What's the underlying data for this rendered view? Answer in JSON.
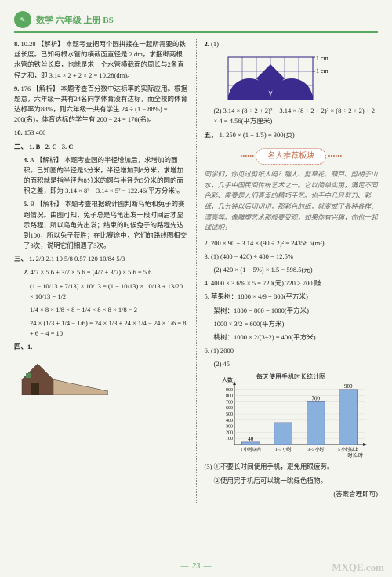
{
  "header": {
    "title": "数学 六年级 上册 BS"
  },
  "left": {
    "q8": {
      "num": "8.",
      "ans": "10.28",
      "label": "【解析】",
      "text": "本题考查把两个圆拼接在一起所需要的铁丝长度。已知每根水管的横截面直径是 2 dm，求捆绑两根水管的铁丝长度，也就是求一个水管横截面的周长与2条直径之和，即 3.14 × 2 + 2 × 2 = 10.28(dm)。"
    },
    "q9": {
      "num": "9.",
      "ans": "176",
      "label": "【解析】",
      "text": "本题考查百分数中达标率的实际应用。根据题意，六年级一共有24名同学体育没有达标，而全校的体育达标率为88%，则六年级一共有学生 24 ÷ (1 − 88%) = 200(名)，体育达标的学生有 200 − 24 = 176(名)。"
    },
    "q10": {
      "num": "10.",
      "ans": "153  400"
    },
    "sec2": {
      "label": "二、",
      "q1": "1. B",
      "q2": "2. C",
      "q3": "3. C",
      "q4": {
        "num": "4.",
        "ans": "A",
        "label": "【解析】",
        "text": "本题考查圆的半径增加后，求增加的面积。已知圆的半径是5分米，半径增加到8分米，求增加的面积就是指半径为8分米的圆与半径为5分米的圆的面积之差，即为 3.14 × 8² − 3.14 × 5² = 122.46(平方分米)。"
      },
      "q5": {
        "num": "5.",
        "ans": "B",
        "label": "【解析】",
        "text": "本题考查根据统计图判断乌龟和兔子的赛跑情况。由图可知，兔子总是乌龟出发一段时间后才显示路程，所以乌龟先出发；结束的时候兔子的路程先达到100，所以兔子获胜；在比赛途中，它们的路线图相交了3次，说明它们相遇了3次。"
      }
    },
    "sec3": {
      "label": "三、",
      "row1": [
        "2/3",
        "2.1",
        "10",
        "5/8",
        "0.57",
        "120",
        "10/84",
        "5/3"
      ],
      "eq2a": "4/7 × 5.6 + 3/7 × 5.6 = (4/7 + 3/7) × 5.6 = 5.6",
      "eq2b": "(1 − 10/13 + 7/13) × 10/13 = (1 − 10/13) × 10/13 + 13/20 × 10/13 = 1/2",
      "eq2c": "1/4 × 8 × 1/8 × 8 = 1/4 × 8 × 8 × 1/8 = 2",
      "eq2d": "24 × (1/3 + 1/4 − 1/6) = 24 × 1/3 + 24 × 1/4 − 24 × 1/6 = 8 + 6 − 4 = 10"
    },
    "sec4": {
      "label": "四、1."
    }
  },
  "right": {
    "q2": {
      "num": "2.",
      "p1": "(1)",
      "diagram": {
        "width_cells": 6,
        "height_cells": 3,
        "grid_color": "#2a1a7a",
        "fill_color": "#3b2b8f",
        "top_label": "1 cm",
        "right_label": "1 cm"
      },
      "p2": "(2) 3.14 × (8 ÷ 2 + 2)² − 3.14 × (8 ÷ 2 + 2)² × (8 ÷ 2 + 2) + 2 × 4 = 4.56(平方厘米)"
    },
    "sec5": {
      "label": "五、",
      "q1": "1. 250 × (1 + 1/5) = 300(页)"
    },
    "tutor": {
      "title": "名人推荐板块",
      "body": "同学们，你见过剪纸人吗？蹦人、剪草花、葫芦、剪胡子山水，几乎中国民间传统艺术之一。它以简单实用，满足不同色彩、需要是人们喜爱的精巧手艺。也手中几只剪刀、彩纸，几分钟以后切切切，那彩色的纸，就变成了各种各样、漂亮等。像雕塑艺术那般要受观，如果你有兴趣，你也一起试试吧！"
    },
    "probs": {
      "p2": "2. 200 × 90 + 3.14 × (90 ÷ 2)² = 24358.5(m²)",
      "p3a": "3. (1) (480 − 420) ÷ 480 = 12.5%",
      "p3b": "   (2) 420 × (1 − 5%) × 1.5 = 598.5(元)",
      "p4": "4. 4000 × 3.6% × 5 = 720(元)  720 > 700  赚",
      "p5a": "5. 苹果树：1800 × 4/9 = 800(平方米)",
      "p5b": "梨树：1800 − 800 = 1000(平方米)",
      "p5c": "1000 × 3/2 = 600(平方米)",
      "p5d": "桃树：1000 × 2/(3+2) = 400(平方米)",
      "p6a": "6. (1) 2000",
      "p6b": "   (2) 45"
    },
    "chart": {
      "title": "每天使用手机时长统计图",
      "y_label": "人数",
      "y_ticks": [
        100,
        200,
        300,
        400,
        500,
        600,
        700,
        800,
        900
      ],
      "y_max": 1000,
      "categories": [
        "1 小时以内",
        "1~3 小时",
        "3~5 小时",
        "5 小时以上"
      ],
      "values": [
        40,
        360,
        700,
        900
      ],
      "bar_colors": [
        "#8ab0dd",
        "#8ab0dd",
        "#8ab0dd",
        "#8ab0dd"
      ],
      "label_values": [
        "40",
        "",
        "700",
        "900"
      ],
      "x_axis_label": "时长/时",
      "grid_color": "#d0d0d0",
      "axis_color": "#333"
    },
    "notes": {
      "n1": "(3) ①不要长时间使用手机，避免用眼疲劳。",
      "n2": "②使用完手机后可以眺一眺绿色植物。",
      "n3": "(答案合理即可)"
    }
  },
  "page_number": "23",
  "watermark": "MXQE.com"
}
